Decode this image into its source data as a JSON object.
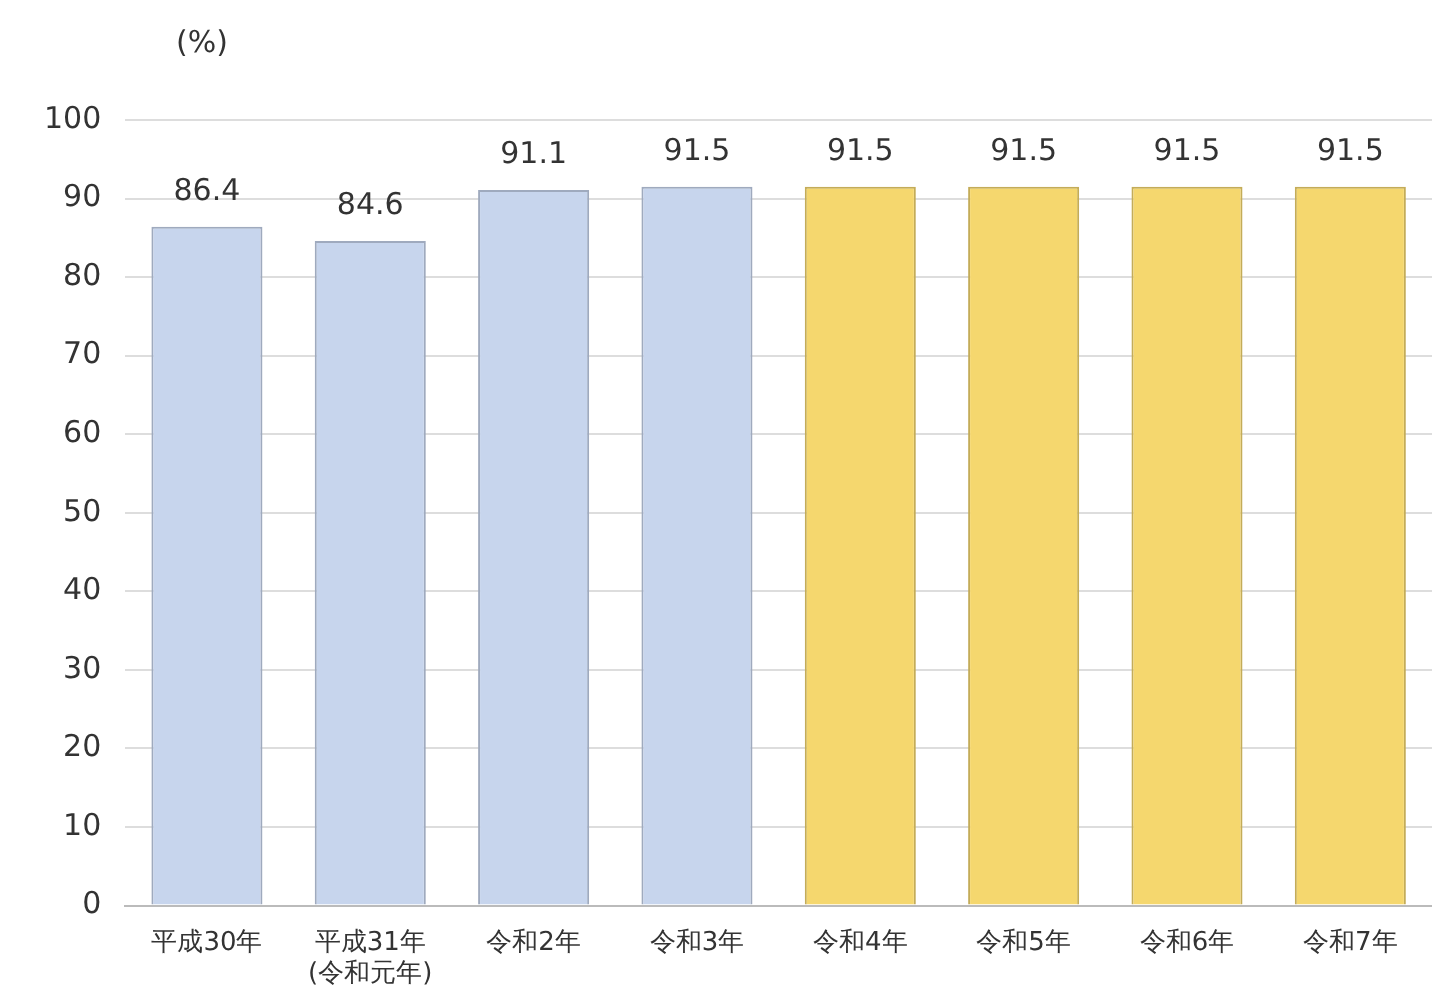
{
  "chart_data": {
    "type": "bar",
    "ylabel": "(%)",
    "categories": [
      "平成30年",
      "平成31年\n(令和元年)",
      "令和2年",
      "令和3年",
      "令和4年",
      "令和5年",
      "令和6年",
      "令和7年"
    ],
    "values": [
      86.4,
      84.6,
      91.1,
      91.5,
      91.5,
      91.5,
      91.5,
      91.5
    ],
    "colors": [
      "#c7d5ed",
      "#c7d5ed",
      "#c7d5ed",
      "#c7d5ed",
      "#f5d76e",
      "#f5d76e",
      "#f5d76e",
      "#f5d76e"
    ],
    "ylim": [
      0,
      100
    ],
    "yticks": [
      0,
      10,
      20,
      30,
      40,
      50,
      60,
      70,
      80,
      90,
      100
    ],
    "grid": "y",
    "data_labels": true
  }
}
